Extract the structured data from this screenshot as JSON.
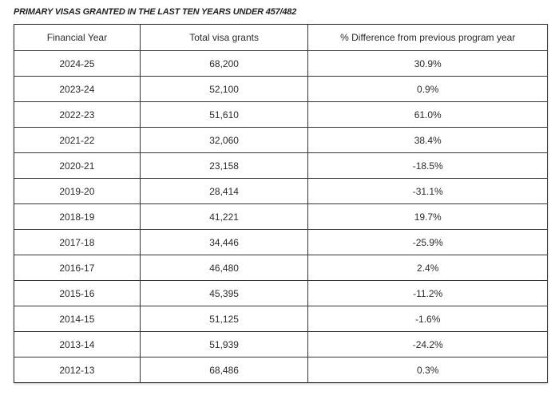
{
  "title": "PRIMARY VISAS GRANTED IN THE LAST TEN YEARS UNDER 457/482",
  "columns": [
    "Financial Year",
    "Total visa grants",
    "% Difference from previous program year"
  ],
  "rows": [
    [
      "2024-25",
      "68,200",
      "30.9%"
    ],
    [
      "2023-24",
      "52,100",
      "0.9%"
    ],
    [
      "2022-23",
      "51,610",
      "61.0%"
    ],
    [
      "2021-22",
      "32,060",
      "38.4%"
    ],
    [
      "2020-21",
      "23,158",
      "-18.5%"
    ],
    [
      "2019-20",
      "28,414",
      "-31.1%"
    ],
    [
      "2018-19",
      "41,221",
      "19.7%"
    ],
    [
      "2017-18",
      "34,446",
      "-25.9%"
    ],
    [
      "2016-17",
      "46,480",
      "2.4%"
    ],
    [
      "2015-16",
      "45,395",
      "-11.2%"
    ],
    [
      "2014-15",
      "51,125",
      "-1.6%"
    ],
    [
      "2013-14",
      "51,939",
      "-24.2%"
    ],
    [
      "2012-13",
      "68,486",
      "0.3%"
    ]
  ]
}
